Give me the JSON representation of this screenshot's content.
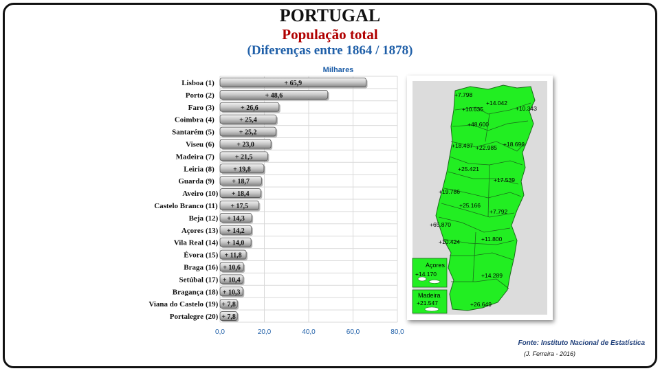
{
  "header": {
    "title": "PORTUGAL",
    "subtitle": "População total",
    "period": "(Diferenças entre 1864  /  1878)"
  },
  "chart_data": {
    "type": "bar",
    "orientation": "horizontal",
    "unit_label": "Milhares",
    "xlim": [
      0,
      80
    ],
    "x_ticks": [
      "0,0",
      "20,0",
      "40,0",
      "60,0",
      "80,0"
    ],
    "grid": true,
    "categories": [
      "Lisboa",
      "Porto",
      "Faro",
      "Coimbra",
      "Santarém",
      "Viseu",
      "Madeira",
      "Leiria",
      "Guarda",
      "Aveiro",
      "Castelo Branco",
      "Beja",
      "Açores",
      "Vila Real",
      "Évora",
      "Braga",
      "Setúbal",
      "Bragança",
      "Viana do Castelo",
      "Portalegre"
    ],
    "ranks": [
      "(1)",
      "(2)",
      "(3)",
      "(4)",
      "(5)",
      "(6)",
      "(7)",
      "(8)",
      "(9)",
      "(10)",
      "(11)",
      "(12)",
      "(13)",
      "(14)",
      "(15)",
      "(16)",
      "(17)",
      "(18)",
      "(19)",
      "(20)"
    ],
    "values": [
      65.9,
      48.6,
      26.6,
      25.4,
      25.2,
      23.0,
      21.5,
      19.8,
      18.7,
      18.4,
      17.5,
      14.3,
      14.2,
      14.0,
      11.8,
      10.6,
      10.4,
      10.3,
      7.8,
      7.8
    ],
    "value_labels": [
      "+ 65,9",
      "+ 48,6",
      "+ 26,6",
      "+ 25,4",
      "+ 25,2",
      "+ 23,0",
      "+ 21,5",
      "+ 19,8",
      "+ 18,7",
      "+ 18,4",
      "+ 17,5",
      "+ 14,3",
      "+ 14,2",
      "+ 14,0",
      "+ 11,8",
      "+ 10,6",
      "+ 10,4",
      "+ 10,3",
      "+ 7,8",
      "+ 7,8"
    ],
    "colors": {
      "bar": "#c8c8c8",
      "bar_edge": "#555555",
      "label": "#111111",
      "axis_tick": "#1f5fa8",
      "unit": "#1f5fa8"
    }
  },
  "map": {
    "fill_color": "#22ee22",
    "labels": [
      "+7.798",
      "+14.042",
      "+10.635",
      "+10.343",
      "+48.600",
      "+18.437",
      "+22.985",
      "+18.696",
      "+25.421",
      "+17.539",
      "+19.786",
      "+25.166",
      "+7.792",
      "+65.870",
      "+11.800",
      "+10.424",
      "+14.289",
      "+26.649"
    ],
    "inset_acores_name": "Açores",
    "inset_acores_value": "+14.170",
    "inset_madeira_name": "Madeira",
    "inset_madeira_value": "+21.547"
  },
  "footer": {
    "source": "Fonte: Instituto Nacional de Estatística",
    "author": "(J. Ferreira - 2016)"
  }
}
